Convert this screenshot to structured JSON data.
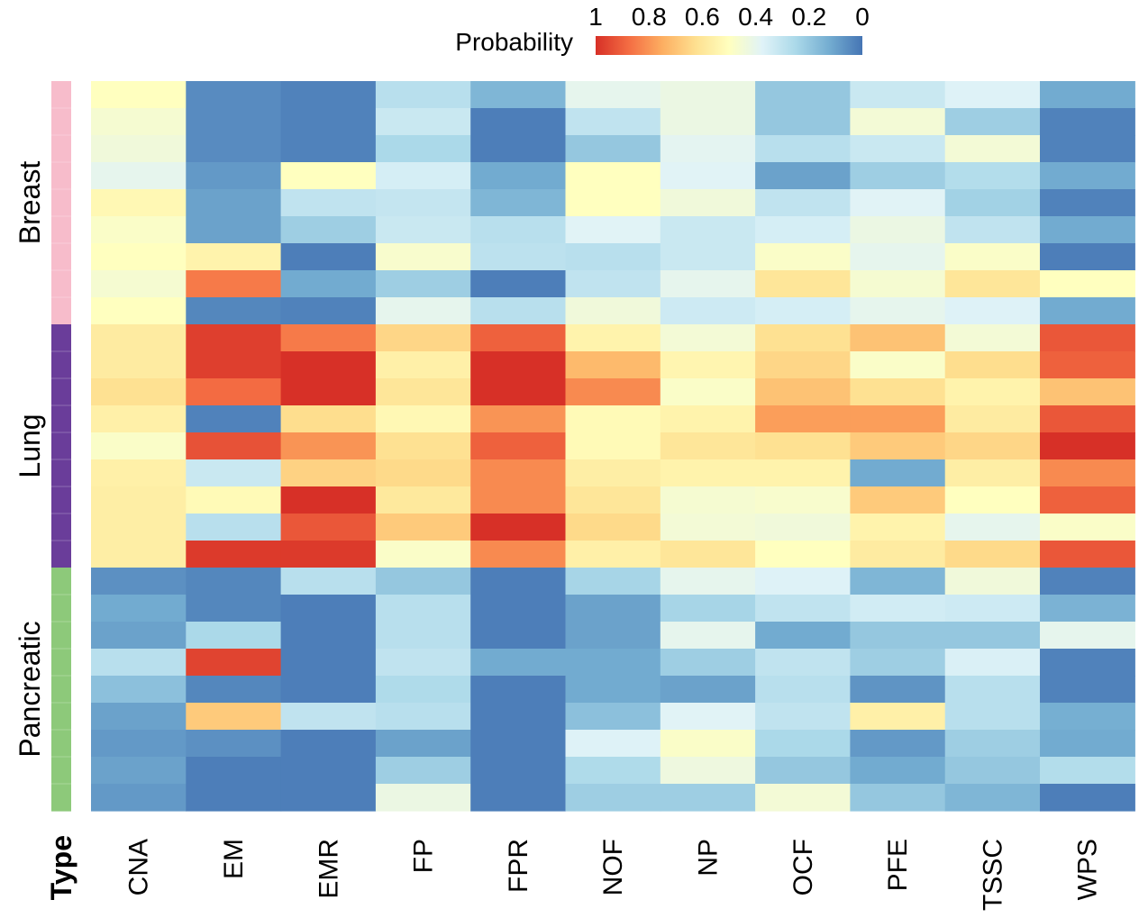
{
  "chart_data": {
    "type": "heatmap",
    "legend": {
      "title": "Probability",
      "ticks": [
        "1",
        "0.8",
        "0.6",
        "0.4",
        "0.2",
        "0"
      ],
      "range": [
        1,
        0
      ],
      "colors": [
        "#d73027",
        "#f46d43",
        "#fdae61",
        "#fee090",
        "#ffffbf",
        "#e0f3f8",
        "#abd9e9",
        "#74add1",
        "#4575b4"
      ],
      "placement": "top-right"
    },
    "type_label": "Type",
    "columns": [
      "CNA",
      "EM",
      "EMR",
      "FP",
      "FPR",
      "NOF",
      "NP",
      "OCF",
      "PFE",
      "TSSC",
      "WPS"
    ],
    "groups": [
      {
        "name": "Breast",
        "color": "#f7bccb",
        "rows": 9
      },
      {
        "name": "Lung",
        "color": "#6a3d9a",
        "rows": 9
      },
      {
        "name": "Pancreatic",
        "color": "#8dc97a",
        "rows": 9
      }
    ],
    "values": [
      [
        0.5,
        0.05,
        0.03,
        0.28,
        0.15,
        0.4,
        0.42,
        0.2,
        0.32,
        0.37,
        0.12
      ],
      [
        0.46,
        0.05,
        0.03,
        0.32,
        0.02,
        0.3,
        0.42,
        0.2,
        0.45,
        0.22,
        0.03
      ],
      [
        0.44,
        0.05,
        0.03,
        0.25,
        0.02,
        0.2,
        0.39,
        0.28,
        0.32,
        0.45,
        0.03
      ],
      [
        0.4,
        0.08,
        0.5,
        0.35,
        0.12,
        0.5,
        0.38,
        0.1,
        0.22,
        0.27,
        0.12
      ],
      [
        0.53,
        0.1,
        0.3,
        0.31,
        0.15,
        0.5,
        0.44,
        0.3,
        0.38,
        0.23,
        0.03
      ],
      [
        0.48,
        0.1,
        0.22,
        0.32,
        0.28,
        0.38,
        0.32,
        0.35,
        0.42,
        0.3,
        0.12
      ],
      [
        0.5,
        0.55,
        0.02,
        0.47,
        0.29,
        0.28,
        0.32,
        0.48,
        0.4,
        0.48,
        0.02
      ],
      [
        0.46,
        0.85,
        0.12,
        0.22,
        0.02,
        0.3,
        0.4,
        0.6,
        0.46,
        0.6,
        0.5
      ],
      [
        0.5,
        0.04,
        0.03,
        0.4,
        0.28,
        0.44,
        0.33,
        0.35,
        0.4,
        0.37,
        0.12
      ],
      [
        0.58,
        0.97,
        0.85,
        0.65,
        0.9,
        0.55,
        0.45,
        0.62,
        0.7,
        0.45,
        0.92
      ],
      [
        0.58,
        0.97,
        1.0,
        0.56,
        1.0,
        0.72,
        0.54,
        0.65,
        0.48,
        0.63,
        0.9
      ],
      [
        0.62,
        0.88,
        1.0,
        0.6,
        1.0,
        0.82,
        0.48,
        0.7,
        0.62,
        0.55,
        0.7
      ],
      [
        0.56,
        0.03,
        0.63,
        0.53,
        0.8,
        0.52,
        0.55,
        0.78,
        0.78,
        0.58,
        0.92
      ],
      [
        0.48,
        0.93,
        0.8,
        0.62,
        0.9,
        0.52,
        0.6,
        0.62,
        0.68,
        0.65,
        1.0
      ],
      [
        0.56,
        0.32,
        0.66,
        0.64,
        0.82,
        0.57,
        0.55,
        0.55,
        0.12,
        0.57,
        0.82
      ],
      [
        0.57,
        0.52,
        1.0,
        0.59,
        0.82,
        0.6,
        0.46,
        0.47,
        0.68,
        0.5,
        0.9
      ],
      [
        0.57,
        0.28,
        0.92,
        0.68,
        1.0,
        0.64,
        0.45,
        0.44,
        0.55,
        0.4,
        0.48
      ],
      [
        0.57,
        0.98,
        0.98,
        0.48,
        0.82,
        0.56,
        0.6,
        0.5,
        0.58,
        0.64,
        0.92
      ],
      [
        0.06,
        0.04,
        0.28,
        0.2,
        0.02,
        0.24,
        0.4,
        0.37,
        0.15,
        0.44,
        0.03
      ],
      [
        0.12,
        0.04,
        0.02,
        0.28,
        0.02,
        0.1,
        0.24,
        0.3,
        0.34,
        0.33,
        0.14
      ],
      [
        0.1,
        0.25,
        0.02,
        0.28,
        0.02,
        0.1,
        0.4,
        0.12,
        0.2,
        0.2,
        0.4
      ],
      [
        0.28,
        0.96,
        0.02,
        0.3,
        0.12,
        0.12,
        0.22,
        0.3,
        0.22,
        0.36,
        0.03
      ],
      [
        0.18,
        0.04,
        0.02,
        0.26,
        0.02,
        0.12,
        0.1,
        0.28,
        0.07,
        0.28,
        0.03
      ],
      [
        0.1,
        0.68,
        0.3,
        0.28,
        0.02,
        0.18,
        0.38,
        0.3,
        0.56,
        0.28,
        0.13
      ],
      [
        0.08,
        0.06,
        0.02,
        0.1,
        0.02,
        0.37,
        0.48,
        0.25,
        0.08,
        0.22,
        0.12
      ],
      [
        0.1,
        0.02,
        0.02,
        0.22,
        0.02,
        0.26,
        0.43,
        0.2,
        0.12,
        0.2,
        0.27
      ],
      [
        0.08,
        0.02,
        0.02,
        0.42,
        0.02,
        0.22,
        0.22,
        0.45,
        0.2,
        0.15,
        0.02
      ]
    ]
  }
}
